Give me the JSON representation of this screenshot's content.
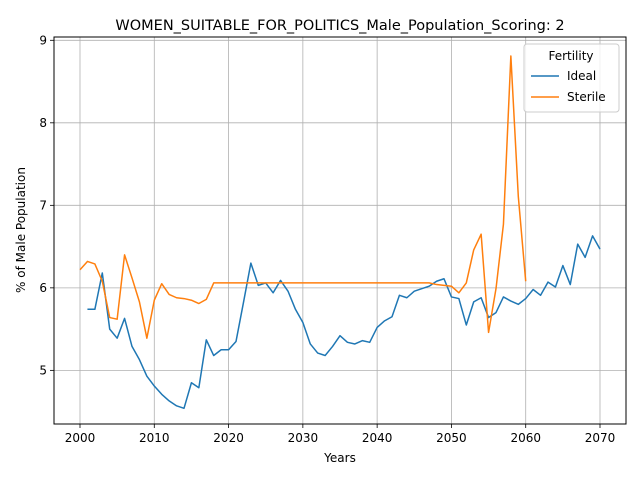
{
  "chart_data": {
    "type": "line",
    "title": "WOMEN_SUITABLE_FOR_POLITICS_Male_Population_Scoring: 2",
    "xlabel": "Years",
    "ylabel": "% of Male Population",
    "xlim": [
      1996.5,
      2073.5
    ],
    "ylim": [
      4.35,
      9.04
    ],
    "xticks": [
      2000,
      2010,
      2020,
      2030,
      2040,
      2050,
      2060,
      2070
    ],
    "yticks": [
      5,
      6,
      7,
      8,
      9
    ],
    "grid": true,
    "legend": {
      "title": "Fertility",
      "placement": "top-right"
    },
    "series": [
      {
        "name": "Ideal",
        "color": "#1f77b4",
        "x": [
          2001,
          2002,
          2003,
          2004,
          2005,
          2006,
          2007,
          2008,
          2009,
          2010,
          2011,
          2012,
          2013,
          2014,
          2015,
          2016,
          2017,
          2018,
          2019,
          2020,
          2021,
          2022,
          2023,
          2024,
          2025,
          2026,
          2027,
          2028,
          2029,
          2030,
          2031,
          2032,
          2033,
          2034,
          2035,
          2036,
          2037,
          2038,
          2039,
          2040,
          2041,
          2042,
          2043,
          2044,
          2045,
          2046,
          2047,
          2048,
          2049,
          2050,
          2051,
          2052,
          2053,
          2054,
          2055,
          2056,
          2057,
          2058,
          2059,
          2060,
          2061,
          2062,
          2063,
          2064,
          2065,
          2066,
          2067,
          2068,
          2069,
          2070
        ],
        "values": [
          5.74,
          5.74,
          6.18,
          5.5,
          5.39,
          5.63,
          5.29,
          5.13,
          4.93,
          4.81,
          4.71,
          4.63,
          4.57,
          4.54,
          4.85,
          4.79,
          5.37,
          5.18,
          5.25,
          5.25,
          5.35,
          5.82,
          6.3,
          6.03,
          6.06,
          5.94,
          6.09,
          5.96,
          5.74,
          5.58,
          5.32,
          5.21,
          5.18,
          5.29,
          5.42,
          5.34,
          5.32,
          5.36,
          5.34,
          5.52,
          5.6,
          5.65,
          5.91,
          5.88,
          5.96,
          5.99,
          6.02,
          6.08,
          6.11,
          5.89,
          5.87,
          5.55,
          5.83,
          5.88,
          5.64,
          5.7,
          5.89,
          5.84,
          5.8,
          5.87,
          5.98,
          5.91,
          6.07,
          6.01,
          6.27,
          6.04,
          6.53,
          6.37,
          6.63,
          6.47
        ]
      },
      {
        "name": "Sterile",
        "color": "#ff7f0e",
        "x": [
          2000,
          2001,
          2002,
          2003,
          2004,
          2005,
          2006,
          2007,
          2008,
          2009,
          2010,
          2011,
          2012,
          2013,
          2014,
          2015,
          2016,
          2017,
          2018,
          2019,
          2020,
          2021,
          2022,
          2023,
          2024,
          2025,
          2026,
          2027,
          2028,
          2029,
          2030,
          2031,
          2032,
          2033,
          2034,
          2035,
          2036,
          2037,
          2038,
          2039,
          2040,
          2041,
          2042,
          2043,
          2044,
          2045,
          2046,
          2047,
          2048,
          2049,
          2050,
          2051,
          2052,
          2053,
          2054,
          2055,
          2056,
          2057,
          2058,
          2059,
          2060
        ],
        "values": [
          6.22,
          6.32,
          6.29,
          6.08,
          5.64,
          5.62,
          6.4,
          6.12,
          5.83,
          5.39,
          5.85,
          6.05,
          5.92,
          5.88,
          5.87,
          5.85,
          5.81,
          5.86,
          6.06,
          6.06,
          6.06,
          6.06,
          6.06,
          6.06,
          6.06,
          6.06,
          6.06,
          6.06,
          6.06,
          6.06,
          6.06,
          6.06,
          6.06,
          6.06,
          6.06,
          6.06,
          6.06,
          6.06,
          6.06,
          6.06,
          6.06,
          6.06,
          6.06,
          6.06,
          6.06,
          6.06,
          6.06,
          6.06,
          6.04,
          6.03,
          6.02,
          5.94,
          6.06,
          6.46,
          6.65,
          5.46,
          5.99,
          6.77,
          8.81,
          7.11,
          6.08
        ]
      }
    ]
  }
}
